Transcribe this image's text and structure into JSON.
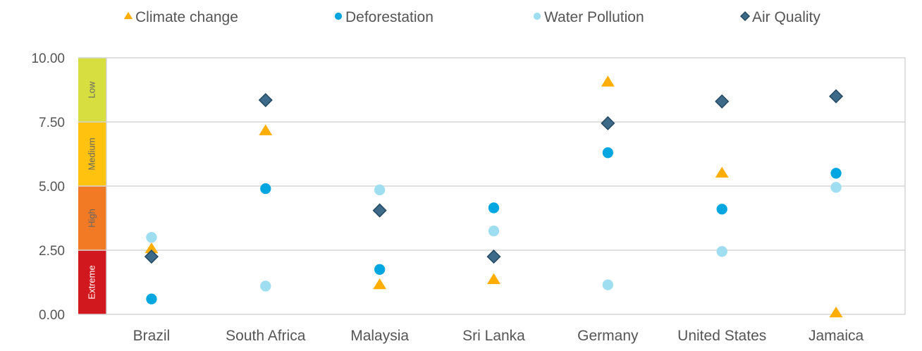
{
  "chart_data": {
    "type": "scatter",
    "title": "",
    "xlabel": "",
    "ylabel": "",
    "ylim": [
      0,
      10
    ],
    "yticks": [
      "0.00",
      "2.50",
      "5.00",
      "7.50",
      "10.00"
    ],
    "grid": true,
    "legend_position": "top",
    "categories": [
      "Brazil",
      "South Africa",
      "Malaysia",
      "Sri Lanka",
      "Germany",
      "United States",
      "Jamaica"
    ],
    "series": [
      {
        "name": "Climate change",
        "marker": "triangle",
        "color": "#FFAE00",
        "values": [
          2.55,
          7.15,
          1.15,
          1.35,
          9.05,
          5.5,
          0.05
        ]
      },
      {
        "name": "Deforestation",
        "marker": "circle",
        "color": "#00A6E0",
        "values": [
          0.6,
          4.9,
          1.75,
          4.15,
          6.3,
          4.1,
          5.5
        ]
      },
      {
        "name": "Water Pollution",
        "marker": "circle",
        "color": "#9EDEF0",
        "values": [
          3.0,
          1.1,
          4.85,
          3.25,
          1.15,
          2.45,
          4.95
        ]
      },
      {
        "name": "Air Quality",
        "marker": "diamond",
        "color": "#3D6A88",
        "values": [
          2.25,
          8.35,
          4.05,
          2.25,
          7.45,
          8.3,
          8.5
        ]
      }
    ],
    "risk_bands": [
      {
        "label": "Extreme",
        "from": 0,
        "to": 2.5,
        "color": "#D2181F",
        "text_color": "#ffffff"
      },
      {
        "label": "High",
        "from": 2.5,
        "to": 5,
        "color": "#F27A24",
        "text_color": "#666666"
      },
      {
        "label": "Medium",
        "from": 5,
        "to": 7.5,
        "color": "#FFC20E",
        "text_color": "#666666"
      },
      {
        "label": "Low",
        "from": 7.5,
        "to": 10,
        "color": "#D6DF3F",
        "text_color": "#666666"
      }
    ]
  }
}
